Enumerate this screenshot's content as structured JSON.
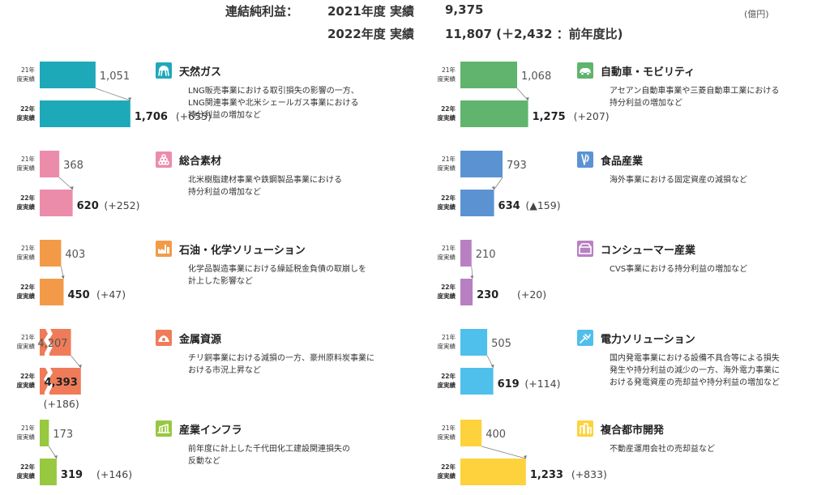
{
  "header": {
    "label": "連結純利益：",
    "fy2021": "2021年度 実績",
    "fy2021_value": "9,375",
    "fy2022": "2022年度 実績",
    "fy2022_value": "11,807 (＋2,432 ：前年度比)",
    "unit": "(億円)"
  },
  "chart_data": {
    "type": "bar",
    "orientation": "horizontal",
    "categories": [
      "21年度実績",
      "22年度実績"
    ],
    "series": [
      {
        "name": "天然ガス",
        "values": [
          1051,
          1706
        ],
        "labels": [
          "1,051",
          "1,706"
        ],
        "delta": "(+655)",
        "color": "#1ea9b9",
        "icon": "gas-tank-icon",
        "description": [
          "LNG販売事業における取引損失の影響の一方、",
          "LNG関連事業や北米シェールガス事業における",
          "持分利益の増加など"
        ]
      },
      {
        "name": "総合素材",
        "values": [
          368,
          620
        ],
        "labels": [
          "368",
          "620"
        ],
        "delta": "(+252)",
        "color": "#ec8cab",
        "icon": "materials-icon",
        "description": [
          "北米樹脂建材事業や鉄鋼製品事業における",
          "持分利益の増加など"
        ]
      },
      {
        "name": "石油・化学ソリューション",
        "values": [
          403,
          450
        ],
        "labels": [
          "403",
          "450"
        ],
        "delta": "(+47)",
        "color": "#f39a48",
        "icon": "factory-icon",
        "description": [
          "化学品製造事業における繰延税金負債の取崩しを",
          "計上した影響など"
        ]
      },
      {
        "name": "金属資源",
        "values": [
          4207,
          4393
        ],
        "labels": [
          "4,207",
          "4,393"
        ],
        "delta": "(+186)",
        "color": "#ef7b59",
        "icon": "ore-icon",
        "axis_break": true,
        "description": [
          "チリ銅事業における減損の一方、豪州原料炭事業に",
          "おける市況上昇など"
        ]
      },
      {
        "name": "産業インフラ",
        "values": [
          173,
          319
        ],
        "labels": [
          "173",
          "319"
        ],
        "delta": "(+146)",
        "color": "#97c83f",
        "icon": "infrastructure-icon",
        "description": [
          "前年度に計上した千代田化工建設関連損失の",
          "反動など"
        ]
      },
      {
        "name": "自動車・モビリティ",
        "values": [
          1068,
          1275
        ],
        "labels": [
          "1,068",
          "1,275"
        ],
        "delta": "(+207)",
        "color": "#60b46e",
        "icon": "car-icon",
        "description": [
          "アセアン自動車事業や三菱自動車工業における",
          "持分利益の増加など"
        ]
      },
      {
        "name": "食品産業",
        "values": [
          793,
          634
        ],
        "labels": [
          "793",
          "634"
        ],
        "delta": "(▲159)",
        "color": "#5b93d2",
        "icon": "food-icon",
        "description": [
          "海外事業における固定資産の減損など"
        ]
      },
      {
        "name": "コンシューマー産業",
        "values": [
          210,
          230
        ],
        "labels": [
          "210",
          "230"
        ],
        "delta": "(+20)",
        "color": "#b880c2",
        "icon": "store-icon",
        "description": [
          "CVS事業における持分利益の増加など"
        ]
      },
      {
        "name": "電力ソリューション",
        "values": [
          505,
          619
        ],
        "labels": [
          "505",
          "619"
        ],
        "delta": "(+114)",
        "color": "#4fbfec",
        "icon": "power-plug-icon",
        "description": [
          "国内発電事業における設備不具合等による損失",
          "発生や持分利益の減少の一方、海外電力事業に",
          "おける発電資産の売却益や持分利益の増加など"
        ]
      },
      {
        "name": "複合都市開発",
        "values": [
          400,
          1233
        ],
        "labels": [
          "400",
          "1,233"
        ],
        "delta": "(+833)",
        "color": "#fdd23c",
        "icon": "building-icon",
        "description": [
          "不動産運用会社の売却益など"
        ]
      }
    ]
  }
}
